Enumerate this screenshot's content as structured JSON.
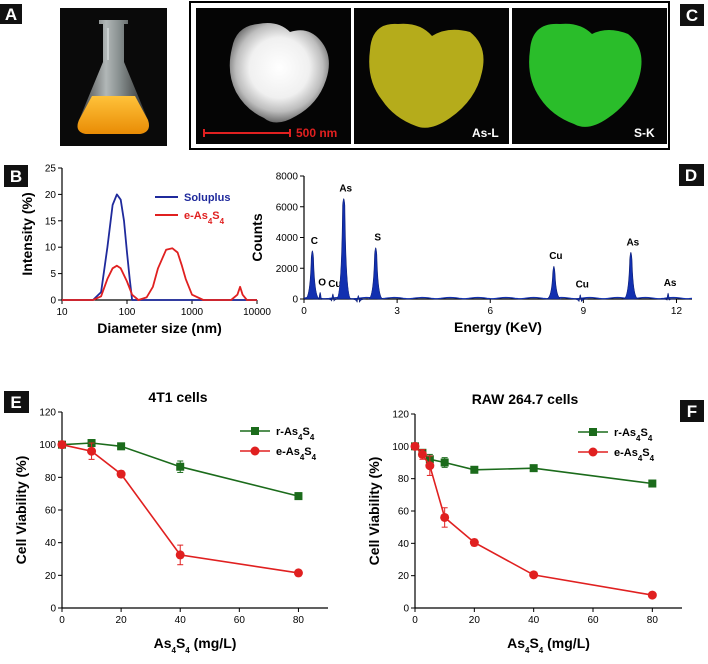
{
  "panel_labels": {
    "a": "A",
    "b": "B",
    "c": "C",
    "d": "D",
    "e": "E",
    "f": "F"
  },
  "colors": {
    "blue": "#1f2a9c",
    "red": "#e02020",
    "green": "#1b6b1b",
    "navy": "#1230b0",
    "flask_liquid": "#f4a81b",
    "as_map": "#c8c020",
    "s_map": "#29d129"
  },
  "panel_c": {
    "scale_label": "500 nm",
    "map1_label": "As-L",
    "map2_label": "S-K"
  },
  "chart_data": [
    {
      "id": "B",
      "type": "line",
      "xlabel": "Diameter size (nm)",
      "ylabel": "Intensity (%)",
      "xscale": "log",
      "xlim": [
        10,
        10000
      ],
      "ylim": [
        0,
        25
      ],
      "xticks": [
        "10",
        "100",
        "1000",
        "10000"
      ],
      "yticks": [
        "0",
        "5",
        "10",
        "15",
        "20",
        "25"
      ],
      "legend": "top-right",
      "series": [
        {
          "name": "Soluplus",
          "name_main": "Soluplus",
          "name_sub": "",
          "name_rest": "",
          "color": "#1f2a9c",
          "x": [
            10,
            30,
            40,
            50,
            60,
            70,
            80,
            90,
            100,
            110,
            120,
            150,
            200,
            10000
          ],
          "y": [
            0,
            0,
            1.5,
            10,
            18,
            20,
            19,
            15,
            9,
            4,
            0,
            0,
            0,
            0
          ]
        },
        {
          "name": "e-As4S4",
          "name_main": "e-As",
          "name_sub": "4",
          "name_rest": "S",
          "name_sub2": "4",
          "color": "#e02020",
          "x": [
            10,
            30,
            40,
            50,
            60,
            70,
            80,
            100,
            120,
            150,
            200,
            250,
            300,
            400,
            500,
            600,
            700,
            800,
            1000,
            1500,
            4000,
            5000,
            5500,
            6000,
            7000,
            10000
          ],
          "y": [
            0,
            0,
            0.7,
            4,
            6,
            6.5,
            6,
            3.5,
            1,
            0,
            0.5,
            2.5,
            6,
            9.5,
            9.8,
            9,
            6.5,
            4,
            1,
            0,
            0,
            1,
            2.5,
            1,
            0,
            0
          ]
        }
      ]
    },
    {
      "id": "D",
      "type": "area",
      "xlabel": "Energy (KeV)",
      "ylabel": "Counts",
      "xlim": [
        0,
        12.5
      ],
      "ylim": [
        0,
        8000
      ],
      "xticks": [
        "0",
        "3",
        "6",
        "9",
        "12"
      ],
      "yticks": [
        "0",
        "2000",
        "4000",
        "6000",
        "8000"
      ],
      "peaks": [
        {
          "label": "C",
          "x": 0.27,
          "y": 3200,
          "w": 0.06
        },
        {
          "label": "O",
          "x": 0.52,
          "y": 500,
          "w": 0.06
        },
        {
          "label": "Cu",
          "x": 0.93,
          "y": 400,
          "w": 0.06
        },
        {
          "label": "As",
          "x": 1.28,
          "y": 6600,
          "w": 0.06
        },
        {
          "label": "",
          "x": 1.75,
          "y": 300,
          "w": 0.06
        },
        {
          "label": "S",
          "x": 2.31,
          "y": 3400,
          "w": 0.06
        },
        {
          "label": "Cu",
          "x": 8.05,
          "y": 2200,
          "w": 0.06
        },
        {
          "label": "Cu",
          "x": 8.9,
          "y": 350,
          "w": 0.06
        },
        {
          "label": "As",
          "x": 10.53,
          "y": 3100,
          "w": 0.06
        },
        {
          "label": "As",
          "x": 11.73,
          "y": 450,
          "w": 0.06
        }
      ]
    },
    {
      "id": "E",
      "type": "line",
      "title": "4T1 cells",
      "xlabel_main": "As",
      "xlabel_sub": "4",
      "xlabel_mid": "S",
      "xlabel_sub2": "4",
      "xlabel_rest": " (mg/L)",
      "ylabel": "Cell Viability (%)",
      "xlim": [
        0,
        90
      ],
      "ylim": [
        0,
        120
      ],
      "xticks": [
        "0",
        "20",
        "40",
        "60",
        "80"
      ],
      "yticks": [
        "0",
        "20",
        "40",
        "60",
        "80",
        "100",
        "120"
      ],
      "legend": "top-right",
      "series": [
        {
          "name": "r-As4S4",
          "name_main": "r-As",
          "name_sub": "4",
          "name_rest": "S",
          "name_sub2": "4",
          "color": "#1b6b1b",
          "marker": "square",
          "x": [
            0,
            10,
            20,
            40,
            80
          ],
          "y": [
            100,
            101,
            99,
            86.5,
            68.5
          ],
          "err": [
            0,
            2,
            2,
            3.5,
            2
          ]
        },
        {
          "name": "e-As4S4",
          "name_main": "e-As",
          "name_sub": "4",
          "name_rest": "S",
          "name_sub2": "4",
          "color": "#e02020",
          "marker": "circle",
          "x": [
            0,
            10,
            20,
            40,
            80
          ],
          "y": [
            100,
            96,
            82,
            32.5,
            21.5
          ],
          "err": [
            0,
            5,
            2,
            6,
            1
          ]
        }
      ]
    },
    {
      "id": "F",
      "type": "line",
      "title": "RAW 264.7  cells",
      "xlabel_main": "As",
      "xlabel_sub": "4",
      "xlabel_mid": "S",
      "xlabel_sub2": "4",
      "xlabel_rest": " (mg/L)",
      "ylabel": "Cell Viability (%)",
      "xlim": [
        0,
        90
      ],
      "ylim": [
        0,
        120
      ],
      "xticks": [
        "0",
        "20",
        "40",
        "60",
        "80"
      ],
      "yticks": [
        "0",
        "20",
        "40",
        "60",
        "80",
        "100",
        "120"
      ],
      "legend": "top-right",
      "series": [
        {
          "name": "r-As4S4",
          "name_main": "r-As",
          "name_sub": "4",
          "name_rest": "S",
          "name_sub2": "4",
          "color": "#1b6b1b",
          "marker": "square",
          "x": [
            0,
            2.5,
            5,
            10,
            20,
            40,
            80
          ],
          "y": [
            100,
            96,
            92,
            90,
            85.5,
            86.5,
            77
          ],
          "err": [
            0,
            2,
            3,
            3,
            2,
            1.5,
            1
          ]
        },
        {
          "name": "e-As4S4",
          "name_main": "e-As",
          "name_sub": "4",
          "name_rest": "S",
          "name_sub2": "4",
          "color": "#e02020",
          "marker": "circle",
          "x": [
            0,
            2.5,
            5,
            10,
            20,
            40,
            80
          ],
          "y": [
            100,
            95,
            88,
            56,
            40.5,
            20.5,
            8
          ],
          "err": [
            0,
            3,
            6,
            6,
            2,
            1,
            1
          ]
        }
      ]
    }
  ]
}
